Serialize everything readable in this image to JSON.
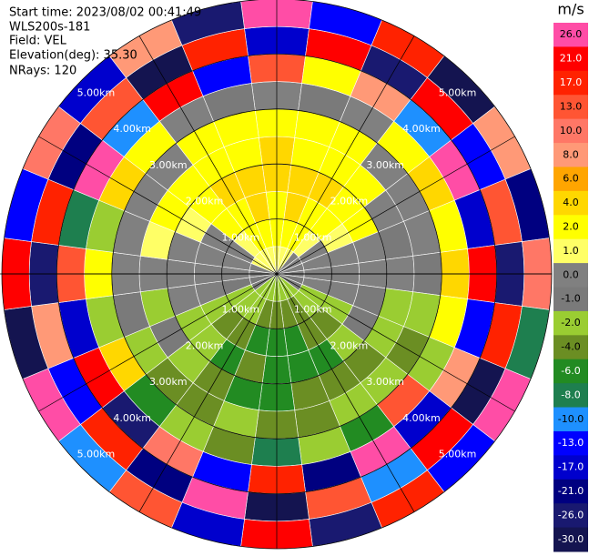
{
  "chart_data": {
    "type": "ppi",
    "info": [
      "Start time: 2023/08/02 00:41:49",
      "WLS200s-181",
      "Field: VEL",
      "Elevation(deg): 35.30",
      "NRays: 120"
    ],
    "azimuth": [
      0,
      15,
      30,
      45,
      60,
      75,
      90,
      105,
      120,
      135,
      150,
      165,
      180,
      195,
      210,
      225,
      240,
      255,
      270,
      285,
      300,
      315,
      330,
      345
    ],
    "range_bins": [
      0,
      0.5,
      1,
      1.5,
      2,
      2.5,
      3,
      3.5,
      4,
      4.5,
      5
    ],
    "rlim": [
      0,
      5
    ],
    "rings": [
      {
        "value": 1,
        "label": "1.00km"
      },
      {
        "value": 2,
        "label": "2.00km"
      },
      {
        "value": 3,
        "label": "3.00km"
      },
      {
        "value": 4,
        "label": "4.00km"
      },
      {
        "value": 5,
        "label": "5.00km"
      }
    ],
    "values": [
      [
        1,
        2,
        2,
        4,
        4,
        2,
        0,
        13,
        -17,
        26
      ],
      [
        1,
        2,
        4,
        4,
        2,
        2,
        -1,
        2,
        21,
        -13
      ],
      [
        1,
        2,
        2,
        4,
        2,
        2,
        0,
        8,
        -26,
        17
      ],
      [
        0,
        1,
        2,
        2,
        2,
        0,
        2,
        -10,
        21,
        -30
      ],
      [
        0,
        0,
        1,
        2,
        0,
        0,
        4,
        26,
        -13,
        8
      ],
      [
        0,
        0,
        0,
        0,
        -1,
        0,
        2,
        -17,
        13,
        -21
      ],
      [
        0,
        0,
        0,
        0,
        0,
        -1,
        4,
        21,
        -26,
        10
      ],
      [
        -1,
        0,
        0,
        -1,
        -2,
        -2,
        2,
        -13,
        17,
        -8
      ],
      [
        -1,
        -2,
        -2,
        -1,
        -2,
        -4,
        -2,
        8,
        -30,
        26
      ],
      [
        -2,
        -2,
        -4,
        -2,
        -4,
        -2,
        13,
        -17,
        21,
        -13
      ],
      [
        -2,
        -4,
        -4,
        -6,
        -4,
        -2,
        -6,
        26,
        -10,
        17
      ],
      [
        -2,
        -4,
        -6,
        -6,
        -4,
        -4,
        -2,
        -21,
        13,
        -26
      ],
      [
        -2,
        -4,
        -6,
        -6,
        -6,
        -4,
        -8,
        17,
        -30,
        21
      ],
      [
        -2,
        -4,
        -6,
        -4,
        -6,
        -2,
        -4,
        -13,
        26,
        -17
      ],
      [
        -2,
        -2,
        -4,
        -6,
        -4,
        -4,
        -2,
        10,
        -21,
        13
      ],
      [
        -2,
        -2,
        -4,
        -2,
        -2,
        -4,
        -6,
        -26,
        17,
        -10
      ],
      [
        -1,
        -2,
        -2,
        -2,
        -1,
        -2,
        4,
        21,
        -13,
        26
      ],
      [
        -1,
        -1,
        0,
        0,
        -2,
        -1,
        -2,
        -17,
        8,
        -30
      ],
      [
        0,
        0,
        0,
        0,
        0,
        0,
        2,
        13,
        -26,
        21
      ],
      [
        0,
        0,
        0,
        0,
        1,
        0,
        -2,
        -8,
        17,
        -13
      ],
      [
        1,
        0,
        0,
        1,
        2,
        0,
        4,
        26,
        -21,
        10
      ],
      [
        1,
        1,
        2,
        2,
        2,
        0,
        2,
        -10,
        13,
        -17
      ],
      [
        1,
        2,
        2,
        4,
        2,
        2,
        0,
        21,
        -30,
        8
      ],
      [
        1,
        2,
        4,
        4,
        2,
        2,
        -1,
        -13,
        17,
        -26
      ]
    ],
    "colorbar": {
      "label": "m/s",
      "ticks": [
        {
          "value": 26,
          "label": "26.0"
        },
        {
          "value": 21,
          "label": "21.0"
        },
        {
          "value": 17,
          "label": "17.0"
        },
        {
          "value": 13,
          "label": "13.0"
        },
        {
          "value": 10,
          "label": "10.0"
        },
        {
          "value": 8,
          "label": "8.0"
        },
        {
          "value": 6,
          "label": "6.0"
        },
        {
          "value": 4,
          "label": "4.0"
        },
        {
          "value": 2,
          "label": "2.0"
        },
        {
          "value": 1,
          "label": "1.0"
        },
        {
          "value": 0,
          "label": "0.0"
        },
        {
          "value": -1,
          "label": "-1.0"
        },
        {
          "value": -2,
          "label": "-2.0"
        },
        {
          "value": -4,
          "label": "-4.0"
        },
        {
          "value": -6,
          "label": "-6.0"
        },
        {
          "value": -8,
          "label": "-8.0"
        },
        {
          "value": -10,
          "label": "-10.0"
        },
        {
          "value": -13,
          "label": "-13.0"
        },
        {
          "value": -17,
          "label": "-17.0"
        },
        {
          "value": -21,
          "label": "-21.0"
        },
        {
          "value": -26,
          "label": "-26.0"
        },
        {
          "value": -30,
          "label": "-30.0"
        }
      ],
      "colors": [
        "#ff4da6",
        "#ff0000",
        "#ff2200",
        "#ff5533",
        "#ff7766",
        "#ff9977",
        "#ffa500",
        "#ffd700",
        "#ffff00",
        "#ffff66",
        "#808080",
        "#7a7a7a",
        "#9acd32",
        "#6b8e23",
        "#228b22",
        "#1e7f4f",
        "#1e90ff",
        "#0000ff",
        "#0000cd",
        "#000080",
        "#191970",
        "#141450"
      ]
    }
  }
}
